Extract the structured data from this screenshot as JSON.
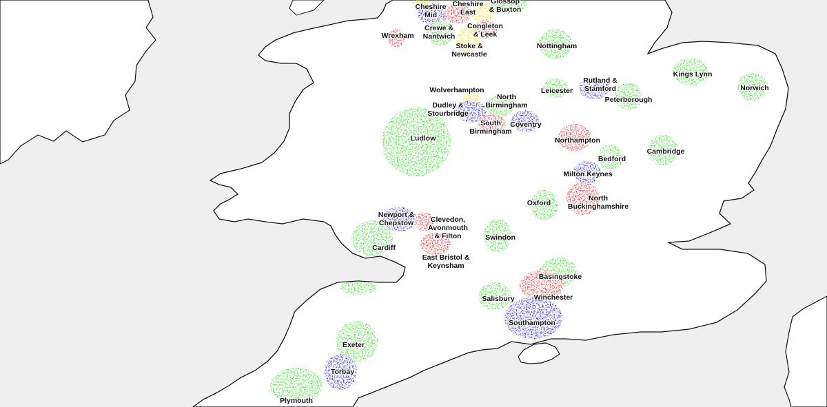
{
  "map": {
    "colors": {
      "sea": "#efefef",
      "land": "#ffffff",
      "coast": "#111111",
      "green": "#33dd22",
      "blue": "#1a14e6",
      "red": "#ee1a1a",
      "yellow": "#f5e800"
    },
    "regions": [
      {
        "id": "cheshire-west",
        "lines": [
          "Cheshire",
          "Mid"
        ],
        "color": "blue"
      },
      {
        "id": "cheshire-east",
        "lines": [
          "Cheshire",
          "East"
        ],
        "color": "red"
      },
      {
        "id": "glossop-buxton",
        "lines": [
          "Glossop",
          "& Buxton"
        ],
        "color": "yellow"
      },
      {
        "id": "wrexham",
        "lines": [
          "Wrexham"
        ],
        "color": "red"
      },
      {
        "id": "crewe-nantwich",
        "lines": [
          "Crewe &",
          "Nantwich"
        ],
        "color": "green"
      },
      {
        "id": "congleton-leek",
        "lines": [
          "Congleton",
          "& Leek"
        ],
        "color": "red"
      },
      {
        "id": "stoke-newcastle",
        "lines": [
          "Stoke &",
          "Newcastle"
        ],
        "color": "yellow"
      },
      {
        "id": "nottingham",
        "lines": [
          "Nottingham"
        ],
        "color": "green"
      },
      {
        "id": "kings-lynn",
        "lines": [
          "Kings Lynn"
        ],
        "color": "green"
      },
      {
        "id": "norwich",
        "lines": [
          "Norwich"
        ],
        "color": "green"
      },
      {
        "id": "wolverhampton",
        "lines": [
          "Wolverhampton"
        ],
        "color": "yellow"
      },
      {
        "id": "leicester",
        "lines": [
          "Leicester"
        ],
        "color": "green"
      },
      {
        "id": "rutland-stamford",
        "lines": [
          "Rutland &",
          "Stamford"
        ],
        "color": "blue"
      },
      {
        "id": "peterborough",
        "lines": [
          "Peterborough"
        ],
        "color": "green"
      },
      {
        "id": "north-birmingham",
        "lines": [
          "North",
          "Birmingham"
        ],
        "color": "green"
      },
      {
        "id": "dudley-stourbridge",
        "lines": [
          "Dudley &",
          "Stourbridge"
        ],
        "color": "blue"
      },
      {
        "id": "south-birmingham",
        "lines": [
          "South",
          "Birmingham"
        ],
        "color": "red"
      },
      {
        "id": "coventry",
        "lines": [
          "Coventry"
        ],
        "color": "blue"
      },
      {
        "id": "ludlow",
        "lines": [
          "Ludlow"
        ],
        "color": "green"
      },
      {
        "id": "northampton",
        "lines": [
          "Northampton"
        ],
        "color": "red"
      },
      {
        "id": "cambridge",
        "lines": [
          "Cambridge"
        ],
        "color": "green"
      },
      {
        "id": "bedford",
        "lines": [
          "Bedford"
        ],
        "color": "green"
      },
      {
        "id": "milton-keynes",
        "lines": [
          "Milton Keynes"
        ],
        "color": "blue"
      },
      {
        "id": "oxford",
        "lines": [
          "Oxford"
        ],
        "color": "green"
      },
      {
        "id": "north-buckinghamshire",
        "lines": [
          "North",
          "Buckinghamshire"
        ],
        "color": "red"
      },
      {
        "id": "newport-chepstow",
        "lines": [
          "Newport &",
          "Chepstow"
        ],
        "color": "blue"
      },
      {
        "id": "clevedon-avonmouth-filton",
        "lines": [
          "Clevedon,",
          "Avonmouth",
          "& Filton"
        ],
        "color": "red"
      },
      {
        "id": "cardiff",
        "lines": [
          "Cardiff"
        ],
        "color": "green"
      },
      {
        "id": "swindon",
        "lines": [
          "Swindon"
        ],
        "color": "green"
      },
      {
        "id": "east-bristol-keynsham",
        "lines": [
          "East Bristol &",
          "Keynsham"
        ],
        "color": "red"
      },
      {
        "id": "basingstoke",
        "lines": [
          "Basingstoke"
        ],
        "color": "green"
      },
      {
        "id": "winchester",
        "lines": [
          "Winchester"
        ],
        "color": "red"
      },
      {
        "id": "salisbury",
        "lines": [
          "Salisbury"
        ],
        "color": "green"
      },
      {
        "id": "southampton",
        "lines": [
          "Southampton"
        ],
        "color": "blue"
      },
      {
        "id": "exeter",
        "lines": [
          "Exeter"
        ],
        "color": "green"
      },
      {
        "id": "torbay",
        "lines": [
          "Torbay"
        ],
        "color": "blue"
      },
      {
        "id": "plymouth",
        "lines": [
          "Plymouth"
        ],
        "color": "green"
      }
    ]
  }
}
